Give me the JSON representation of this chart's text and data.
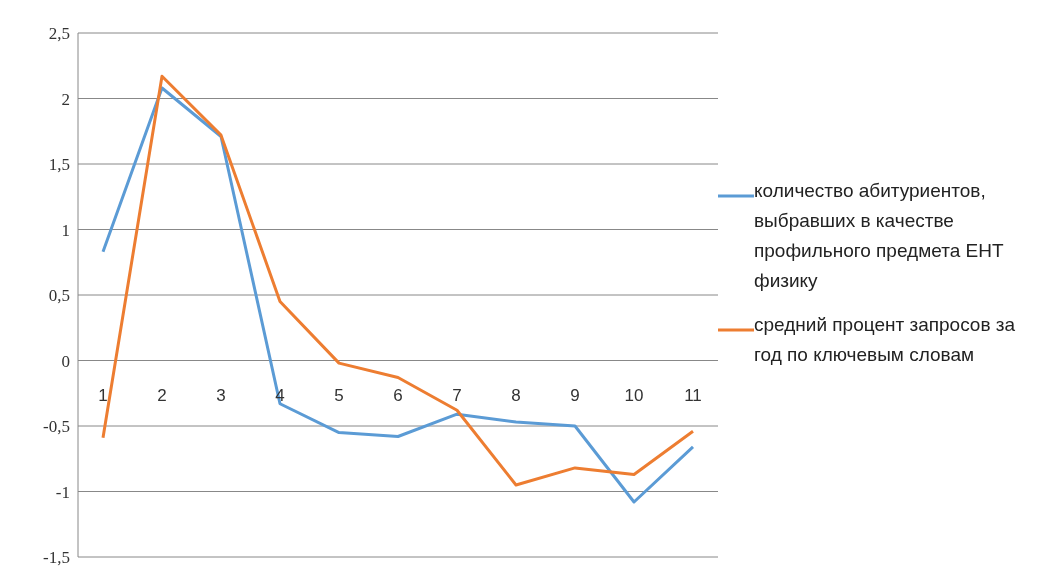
{
  "chart_data": {
    "type": "line",
    "categories": [
      "1",
      "2",
      "3",
      "4",
      "5",
      "6",
      "7",
      "8",
      "9",
      "10",
      "11"
    ],
    "series": [
      {
        "name": "количество абитуриентов, выбравших в качестве профильного предмета ЕНТ физику",
        "color": "#5b9bd5",
        "values": [
          0.83,
          2.08,
          1.71,
          -0.33,
          -0.55,
          -0.58,
          -0.41,
          -0.47,
          -0.5,
          -1.08,
          -0.66
        ]
      },
      {
        "name": "средний процент запросов за год по ключевым словам",
        "color": "#ed7d31",
        "values": [
          -0.59,
          2.17,
          1.72,
          0.45,
          -0.02,
          -0.13,
          -0.38,
          -0.95,
          -0.82,
          -0.87,
          -0.54
        ]
      }
    ],
    "ylim": [
      -1.5,
      2.5
    ],
    "yticks": [
      {
        "value": -1.5,
        "label": "-1,5"
      },
      {
        "value": -1,
        "label": "-1"
      },
      {
        "value": -0.5,
        "label": "-0,5"
      },
      {
        "value": 0,
        "label": "0"
      },
      {
        "value": 0.5,
        "label": "0,5"
      },
      {
        "value": 1,
        "label": "1"
      },
      {
        "value": 1.5,
        "label": "1,5"
      },
      {
        "value": 2,
        "label": "2"
      },
      {
        "value": 2.5,
        "label": "2,5"
      }
    ],
    "grid": "y",
    "legend": "right",
    "marker": "none",
    "line_style": "solid"
  }
}
